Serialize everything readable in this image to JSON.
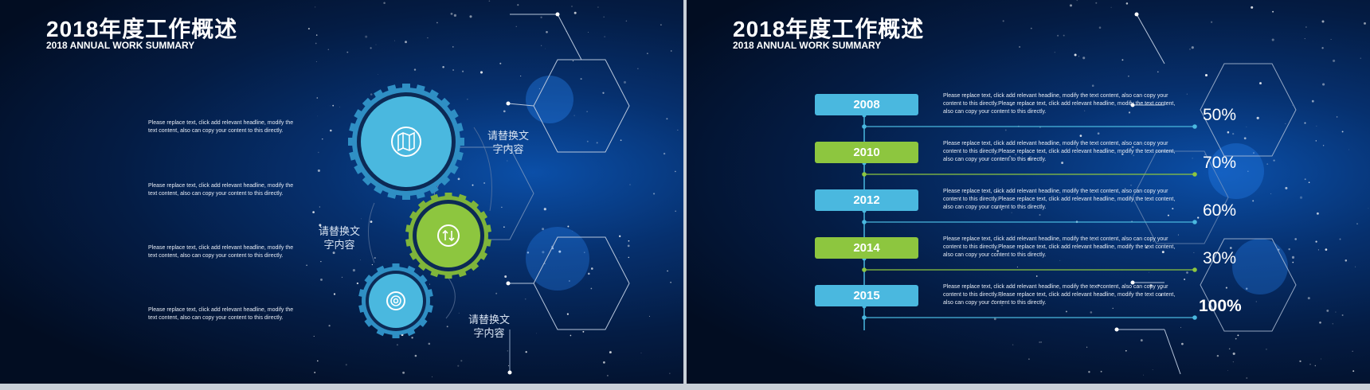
{
  "slides": [
    {
      "title": "2018年度工作概述",
      "subtitle": "2018 ANNUAL WORK SUMMARY",
      "paragraphs": [
        "Please replace text, click add relevant headline, modify the text content, also can copy your content to this directly.",
        "Please replace text, click add relevant headline, modify the text content, also can copy your content to this directly.",
        "Please replace text, click add relevant headline, modify the text content, also can copy your content to this directly.",
        "Please replace text, click add relevant headline, modify the text content, also can copy your content to this directly."
      ],
      "gear_labels": [
        "请替换文\n字内容",
        "请替换文\n字内容",
        "请替换文\n字内容"
      ],
      "gear_icons": [
        "book-map-icon",
        "arrows-up-down-icon",
        "lifebuoy-icon"
      ],
      "colors": {
        "blue": "#4ab8df",
        "green": "#8dc63f",
        "dark": "#0c2a55"
      }
    },
    {
      "title": "2018年度工作概述",
      "subtitle": "2018 ANNUAL WORK SUMMARY",
      "timeline": [
        {
          "year": "2008",
          "color": "#4ab8df",
          "text": "Please replace text, click add relevant headline, modify the text content, also can copy your content to this directly.Please replace text, click add relevant headline, modify the text content, also can copy your content to this directly.",
          "percent": "50%"
        },
        {
          "year": "2010",
          "color": "#8dc63f",
          "text": "Please replace text, click add relevant headline, modify the text content, also can copy your content to this directly.Please replace text, click add relevant headline, modify the text content, also can copy your content to this directly.",
          "percent": "70%"
        },
        {
          "year": "2012",
          "color": "#4ab8df",
          "text": "Please replace text, click add relevant headline, modify the text content, also can copy your content to this directly.Please replace text, click add relevant headline, modify the text content, also can copy your content to this directly.",
          "percent": "60%"
        },
        {
          "year": "2014",
          "color": "#8dc63f",
          "text": "Please replace text, click add relevant headline, modify the text content, also can copy your content to this directly.Please replace text, click add relevant headline, modify the text content, also can copy your content to this directly.",
          "percent": "30%"
        },
        {
          "year": "2015",
          "color": "#4ab8df",
          "text": "Please replace text, click add relevant headline, modify the text content, also can copy your content to this directly.Please replace text, click add relevant headline, modify the text content, also can copy your content to this directly.",
          "percent": "100%"
        }
      ]
    }
  ]
}
